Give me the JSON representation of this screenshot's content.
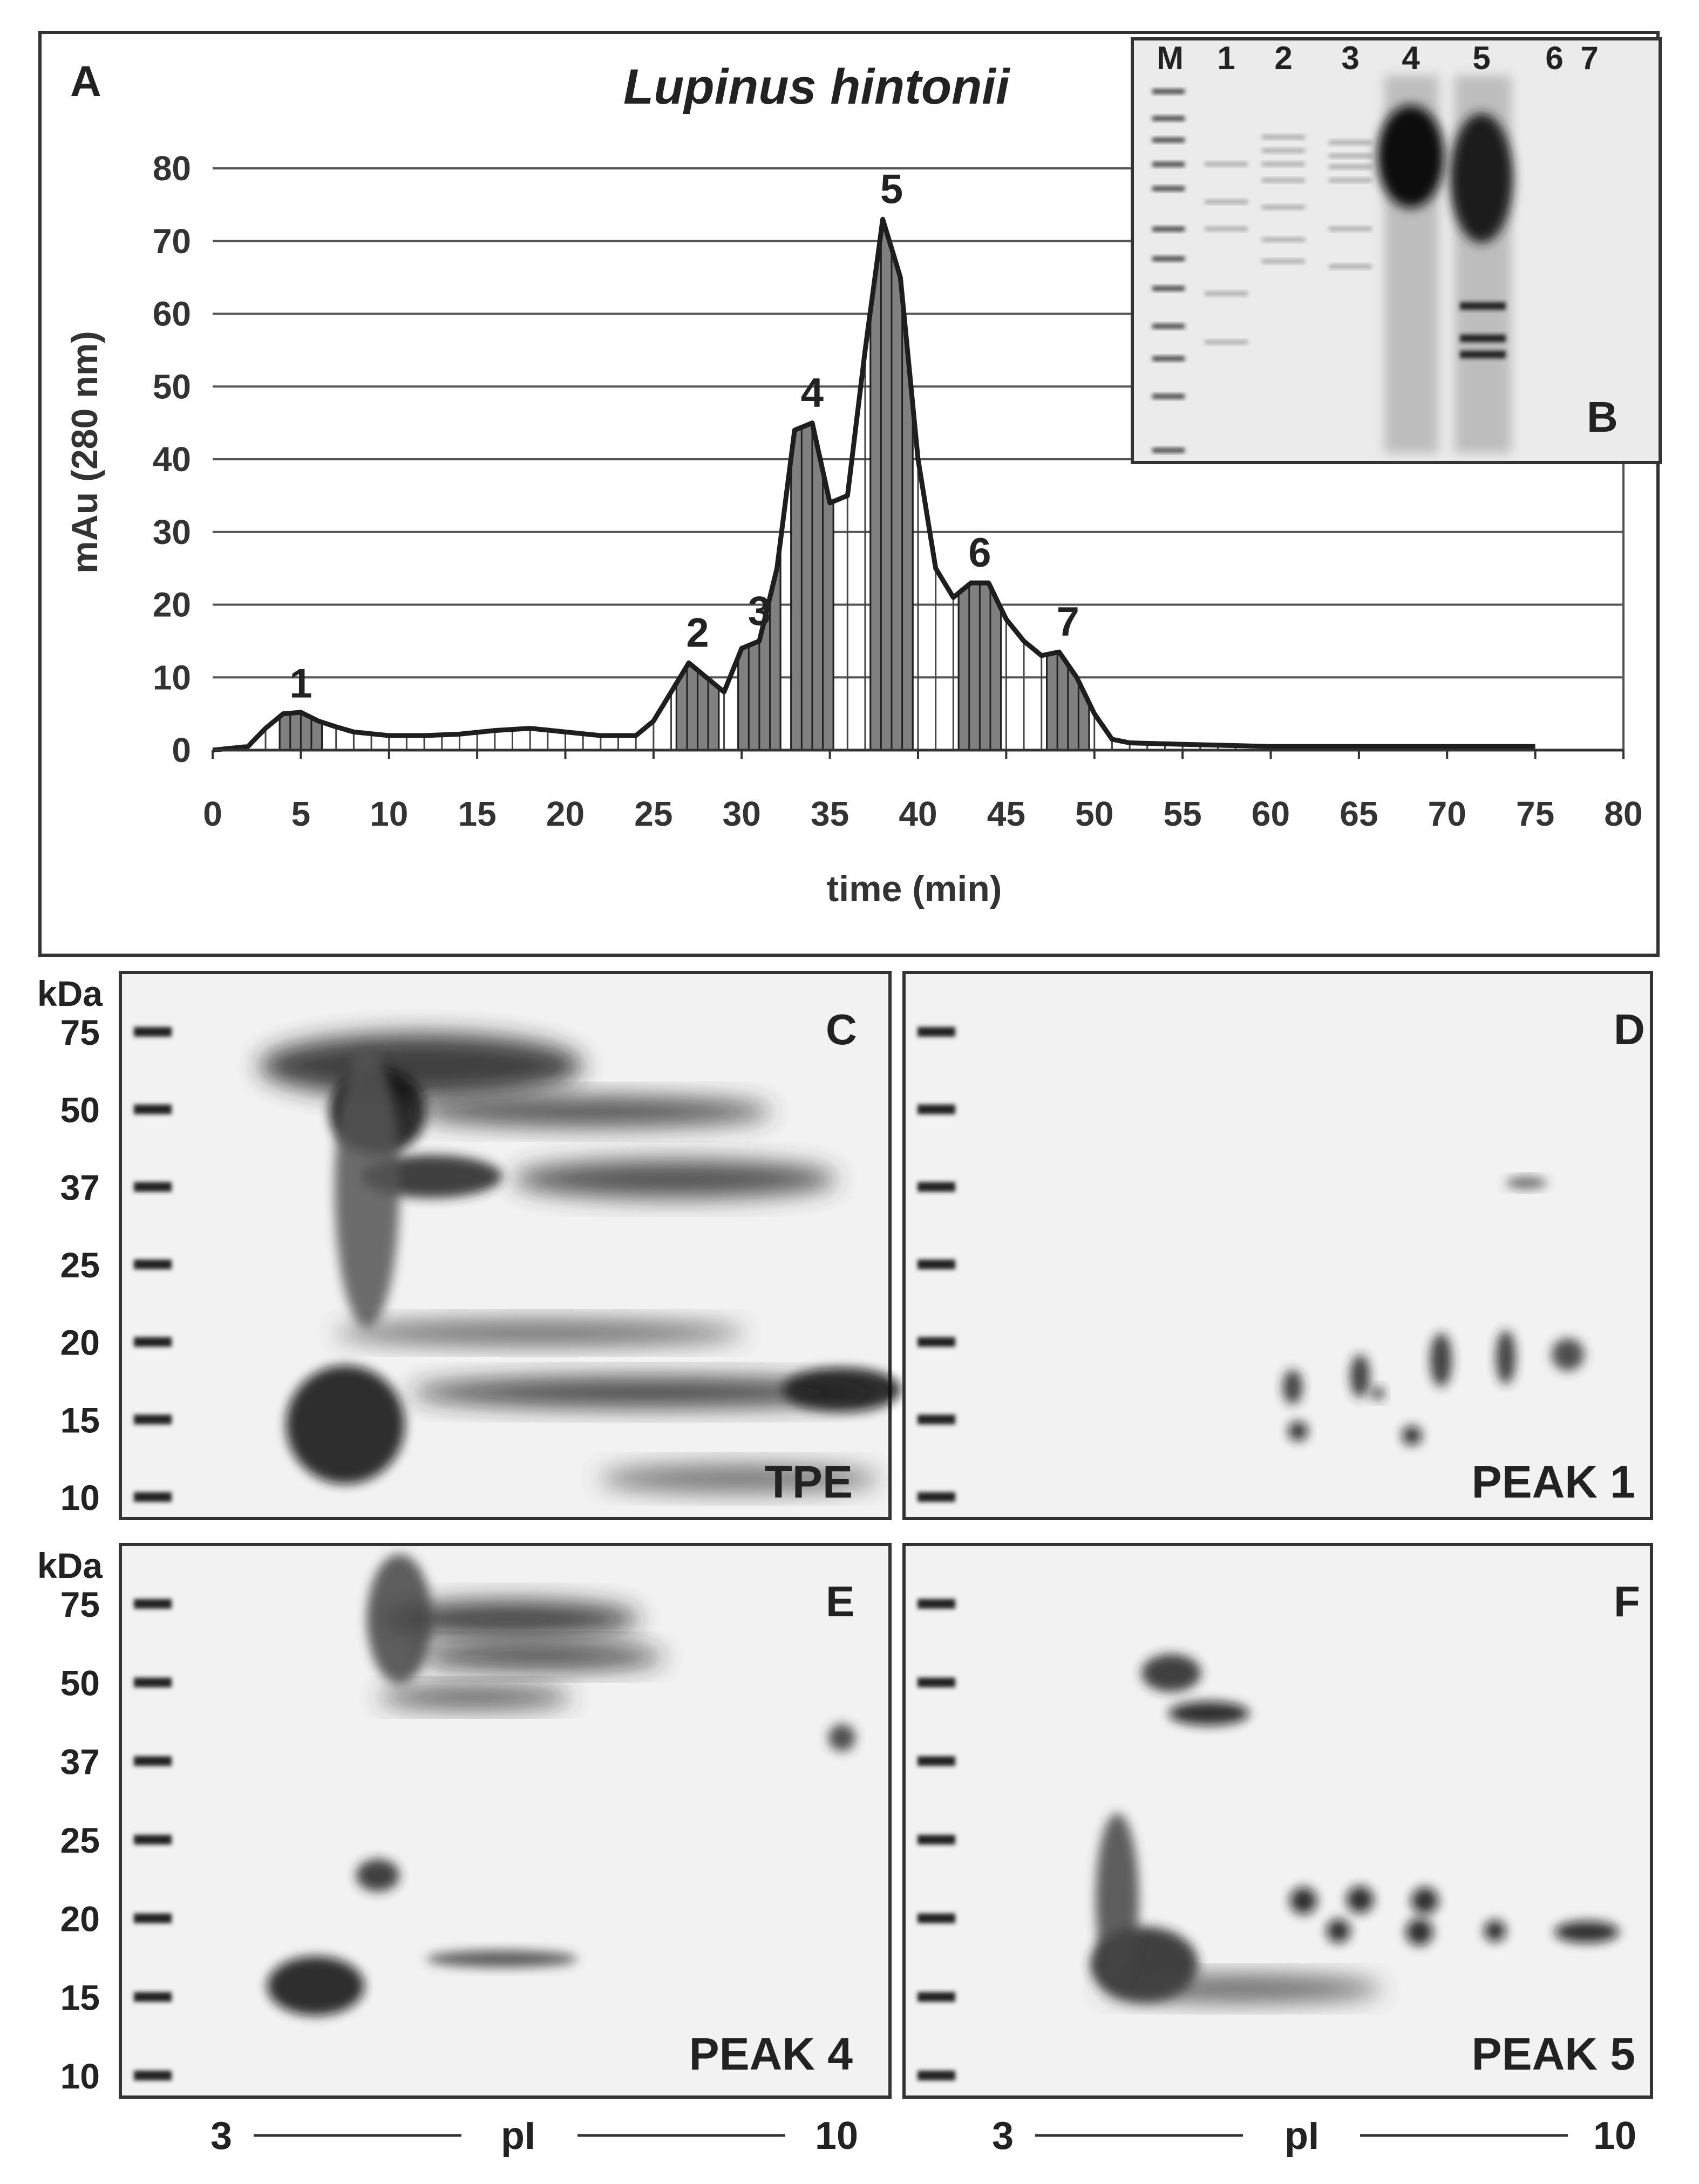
{
  "panel_a": {
    "letter": "A",
    "species": "Lupinus hintonii",
    "inset_letter": "B",
    "inset_lanes": [
      "M",
      "1",
      "2",
      "3",
      "4",
      "5",
      "6",
      "7"
    ]
  },
  "gel_panels": [
    {
      "letter": "C",
      "label": "TPE",
      "show_kda": true
    },
    {
      "letter": "D",
      "label": "PEAK 1",
      "show_kda": false
    },
    {
      "letter": "E",
      "label": "PEAK 4",
      "show_kda": true
    },
    {
      "letter": "F",
      "label": "PEAK 5",
      "show_kda": false
    }
  ],
  "gel_kda": {
    "unit": "kDa",
    "ticks": [
      "75",
      "50",
      "37",
      "25",
      "20",
      "15",
      "10"
    ]
  },
  "pi_axis": {
    "left": "3",
    "label": "pI",
    "right": "10"
  },
  "colors": {
    "frame": "#333333",
    "trace": "#1e1e1e",
    "peak_fill": "#808080",
    "grid": "#555555",
    "gel_bg": "#f2f2f2",
    "gel_band": "#1a1a1a"
  },
  "chart_data": {
    "type": "area",
    "xlabel": "time (min)",
    "ylabel": "mAu (280 nm)",
    "xlim": [
      0,
      80
    ],
    "ylim": [
      0,
      80
    ],
    "xticks": [
      0,
      5,
      10,
      15,
      20,
      25,
      30,
      35,
      40,
      45,
      50,
      55,
      60,
      65,
      70,
      75,
      80
    ],
    "yticks": [
      0,
      10,
      20,
      30,
      40,
      50,
      60,
      70,
      80
    ],
    "grid": "horizontal",
    "series": [
      {
        "x": [
          0,
          2,
          3,
          4,
          5,
          6,
          7,
          8,
          10,
          12,
          14,
          16,
          18,
          20,
          22,
          24,
          25,
          26,
          27,
          28,
          29,
          30,
          31,
          32,
          33,
          34,
          35,
          36,
          37,
          38,
          39,
          40,
          41,
          42,
          43,
          44,
          45,
          46,
          47,
          48,
          49,
          50,
          51,
          52,
          55,
          60,
          65,
          70,
          75
        ],
        "y": [
          0,
          0.5,
          3,
          5,
          5.2,
          4,
          3.2,
          2.5,
          2,
          2,
          2.2,
          2.7,
          3,
          2.5,
          2,
          2,
          4,
          8,
          12,
          10,
          8,
          14,
          15,
          25,
          44,
          45,
          34,
          35,
          55,
          73,
          65,
          40,
          25,
          21,
          23,
          23,
          18,
          15,
          13,
          13.5,
          10,
          5,
          1.5,
          1,
          0.8,
          0.5,
          0.5,
          0.5,
          0.5
        ]
      }
    ],
    "peak_labels": [
      {
        "label": "1",
        "x": 5,
        "y": 5
      },
      {
        "label": "2",
        "x": 27.5,
        "y": 12
      },
      {
        "label": "3",
        "x": 31,
        "y": 15
      },
      {
        "label": "4",
        "x": 34,
        "y": 45
      },
      {
        "label": "5",
        "x": 38.5,
        "y": 73
      },
      {
        "label": "6",
        "x": 43.5,
        "y": 23
      },
      {
        "label": "7",
        "x": 48.5,
        "y": 13.5
      }
    ],
    "fraction_times": [
      5,
      27.5,
      31,
      34,
      38.5,
      43.5,
      48.5
    ]
  }
}
